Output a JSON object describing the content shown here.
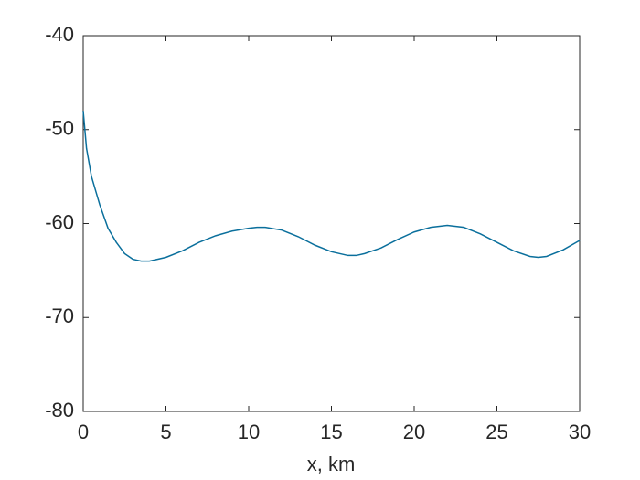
{
  "chart_data": {
    "type": "line",
    "xlabel": "x, km",
    "x": [
      0,
      0.2,
      0.5,
      1,
      1.5,
      2,
      2.5,
      3,
      3.5,
      4,
      5,
      6,
      7,
      8,
      9,
      10,
      10.5,
      11,
      12,
      13,
      14,
      15,
      16,
      16.5,
      17,
      18,
      19,
      20,
      21,
      22,
      23,
      24,
      25,
      26,
      27,
      27.5,
      28,
      29,
      30
    ],
    "series": [
      {
        "color": "#0a6f9c",
        "values": [
          -48,
          -52,
          -55,
          -58,
          -60.5,
          -62,
          -63.2,
          -63.8,
          -64,
          -64,
          -63.6,
          -62.9,
          -62,
          -61.3,
          -60.8,
          -60.5,
          -60.4,
          -60.4,
          -60.7,
          -61.4,
          -62.3,
          -63,
          -63.4,
          -63.4,
          -63.2,
          -62.6,
          -61.7,
          -60.9,
          -60.4,
          -60.2,
          -60.4,
          -61.1,
          -62,
          -62.9,
          -63.5,
          -63.6,
          -63.5,
          -62.8,
          -61.8
        ]
      }
    ],
    "xlim": [
      0,
      30
    ],
    "xticks": [
      0,
      5,
      10,
      15,
      20,
      25,
      30
    ],
    "ylim": [
      -80,
      -40
    ],
    "yticks": [
      -80,
      -70,
      -60,
      -50,
      -40
    ],
    "grid": false,
    "box": true
  }
}
